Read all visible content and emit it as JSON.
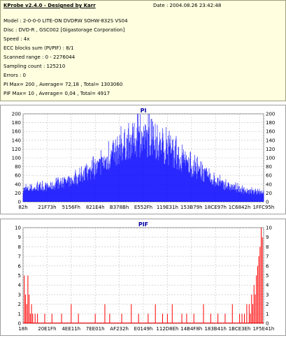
{
  "report": {
    "title": "KProbe v2.4.0 - Designed by Karr",
    "date": "Date : 2004.08.26 23:42:48",
    "lines": [
      "Model : 2-0-0-0 LITE-ON DVDRW SOHW-832S  VS04",
      "Disc : DVD-R , GSC002 [Gigastorage Corporation]",
      "Speed : 4x",
      "ECC blocks sum (PI/PIF) : 8/1",
      "Scanned range : 0 - 2276044",
      "Sampling count : 125210",
      "Errors : 0",
      "PI Max= 200 , Average= 72,18 , Total= 1303060",
      "PIF Max= 10 , Average= 0,04 , Total= 4917"
    ]
  },
  "colors": {
    "info_bg": "#ffffe0",
    "plot_bg": "#ffffff",
    "pi_fill": "#0000ff",
    "pif_bar": "#ff0000",
    "grid": "#c0c0c0",
    "title": "#0000a0"
  },
  "chart_data": [
    {
      "type": "area",
      "title": "PI",
      "ylim": [
        0,
        200
      ],
      "yticks": [
        0,
        20,
        40,
        60,
        80,
        100,
        120,
        140,
        160,
        180,
        200
      ],
      "x_tick_labels": [
        "82h",
        "21F73h",
        "5156Fh",
        "821E4h",
        "B378Bh",
        "E552Fh",
        "119E31h",
        "153B79h",
        "18CE97h",
        "1C6842h",
        "1FFC95h"
      ],
      "grid": true,
      "profile": {
        "x": [
          0,
          0.06,
          0.12,
          0.18,
          0.24,
          0.3,
          0.36,
          0.4,
          0.44,
          0.48,
          0.52,
          0.56,
          0.6,
          0.64,
          0.68,
          0.72,
          0.76,
          0.8,
          0.84,
          0.88,
          0.92,
          0.96,
          1.0
        ],
        "y": [
          36,
          40,
          46,
          56,
          72,
          95,
          128,
          155,
          175,
          185,
          182,
          168,
          150,
          130,
          110,
          92,
          76,
          60,
          48,
          40,
          32,
          28,
          30
        ]
      },
      "max": 200
    },
    {
      "type": "bar",
      "title": "PIF",
      "ylim": [
        0,
        10
      ],
      "yticks": [
        0,
        1,
        2,
        3,
        4,
        5,
        6,
        7,
        8,
        9,
        10
      ],
      "x_tick_labels": [
        "18h",
        "20E1Fh",
        "4EE11h",
        "7EE01h",
        "AF232h",
        "E0149h",
        "112D8Eh",
        "14B4F8h",
        "183B41h",
        "1BCE3Eh",
        "1F5E41h"
      ],
      "grid": true,
      "spikes": {
        "x": [
          0.005,
          0.01,
          0.015,
          0.02,
          0.025,
          0.03,
          0.035,
          0.04,
          0.05,
          0.06,
          0.09,
          0.12,
          0.16,
          0.2,
          0.23,
          0.3,
          0.34,
          0.36,
          0.41,
          0.45,
          0.48,
          0.52,
          0.55,
          0.58,
          0.6,
          0.62,
          0.66,
          0.68,
          0.71,
          0.75,
          0.78,
          0.81,
          0.84,
          0.87,
          0.9,
          0.91,
          0.92,
          0.93,
          0.94,
          0.945,
          0.95,
          0.955,
          0.96,
          0.965,
          0.97,
          0.975,
          0.98,
          0.985,
          0.99,
          0.995
        ],
        "y": [
          5,
          3,
          2,
          5,
          3,
          1,
          2,
          1,
          1,
          1,
          1,
          1,
          1,
          2,
          1,
          1,
          2,
          1,
          1,
          2,
          1,
          1,
          2,
          1,
          1,
          2,
          1,
          1,
          1,
          2,
          1,
          1,
          1,
          2,
          1,
          1,
          1,
          2,
          2,
          1,
          3,
          2,
          4,
          3,
          5,
          6,
          7,
          8,
          10,
          9
        ]
      },
      "max": 10
    }
  ]
}
